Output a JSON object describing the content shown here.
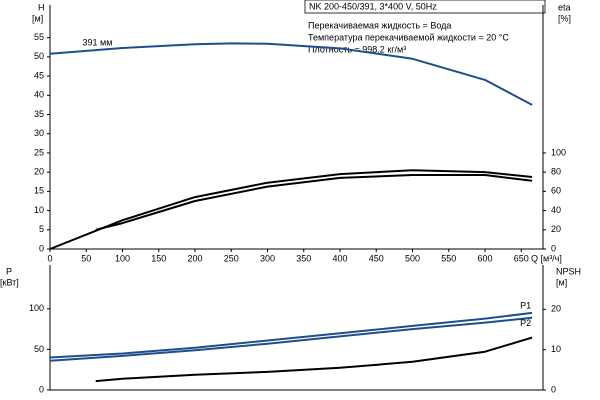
{
  "header": {
    "title": "NK 200-450/391, 3*400 V, 50Hz"
  },
  "chart_data": [
    {
      "type": "line",
      "ylabel": "H",
      "yunit": "[м]",
      "y2label": "eta",
      "y2unit": "[%]",
      "xlabel": "Q [м³/ч]",
      "annotations": [
        "Перекачиваемая жидкость = Вода",
        "Температура перекачиваемой жидкости = 20 °C",
        "Плотность = 998.2 кг/м³"
      ],
      "xlim": [
        0,
        680
      ],
      "xticks": [
        0,
        50,
        100,
        150,
        200,
        250,
        300,
        350,
        400,
        450,
        500,
        550,
        600,
        650
      ],
      "ylim": [
        0,
        63.5
      ],
      "yticks": [
        0,
        5,
        10,
        15,
        20,
        25,
        30,
        35,
        40,
        45,
        50,
        55
      ],
      "y2lim": [
        0,
        254
      ],
      "y2ticks": [
        0,
        20,
        40,
        60,
        80,
        100
      ],
      "series": [
        {
          "name": "391 мм",
          "color": "#1f4e8c",
          "x": [
            0,
            100,
            200,
            250,
            300,
            400,
            500,
            600,
            665
          ],
          "values": [
            50.8,
            52.3,
            53.3,
            53.5,
            53.4,
            52.2,
            49.5,
            44,
            37.5
          ]
        },
        {
          "color": "#000000",
          "axis": "y2",
          "x": [
            0,
            100,
            200,
            300,
            400,
            500,
            600,
            665
          ],
          "values": [
            0,
            30,
            54,
            69,
            78,
            82,
            80,
            75
          ]
        },
        {
          "color": "#000000",
          "axis": "y2",
          "x": [
            63,
            100,
            200,
            300,
            400,
            500,
            600,
            665
          ],
          "values": [
            20,
            27,
            50,
            65,
            74,
            77,
            77,
            71
          ]
        }
      ]
    },
    {
      "type": "line",
      "ylabel": "P",
      "yunit": "[кВт]",
      "y2label": "NPSH",
      "y2unit": "[м]",
      "xlim": [
        0,
        680
      ],
      "ylim": [
        0,
        154
      ],
      "yticks": [
        0,
        50,
        100
      ],
      "y2lim": [
        0,
        31
      ],
      "y2ticks": [
        0,
        10,
        20
      ],
      "series": [
        {
          "name": "P1",
          "color": "#1f4e8c",
          "x": [
            0,
            100,
            200,
            300,
            400,
            500,
            600,
            665
          ],
          "values": [
            40,
            45,
            52,
            61,
            70,
            79,
            88,
            95
          ]
        },
        {
          "name": "P2",
          "color": "#1f4e8c",
          "x": [
            0,
            100,
            200,
            300,
            400,
            500,
            600,
            665
          ],
          "values": [
            36,
            42,
            49,
            57,
            66,
            75,
            83,
            89
          ]
        },
        {
          "color": "#000000",
          "axis": "y2",
          "x": [
            63,
            100,
            200,
            300,
            400,
            500,
            600,
            665
          ],
          "values": [
            2.2,
            2.8,
            3.8,
            4.5,
            5.5,
            7,
            9.5,
            13
          ]
        }
      ]
    }
  ]
}
